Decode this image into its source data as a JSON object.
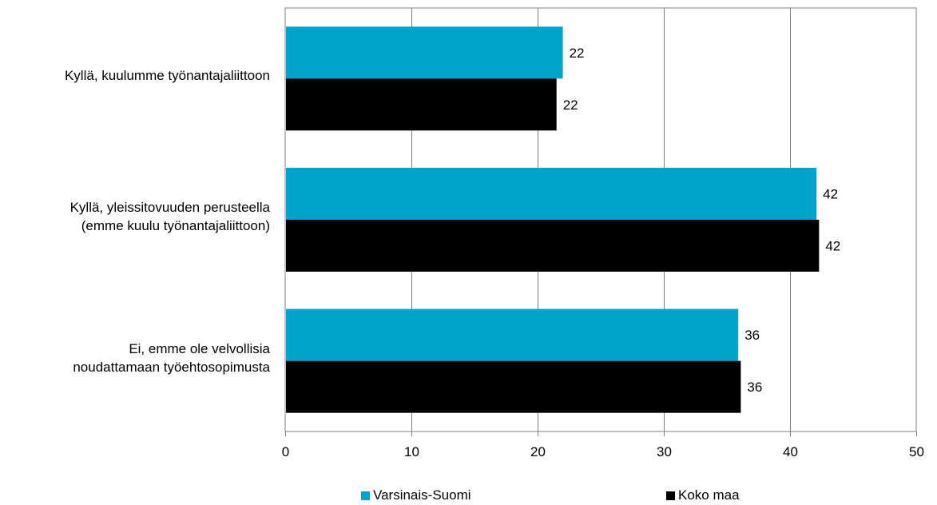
{
  "chart_data": {
    "type": "bar",
    "orientation": "horizontal",
    "categories": [
      [
        "Kyllä, kuulumme työnantajaliittoon"
      ],
      [
        "Kyllä, yleissitovuuden perusteella",
        "(emme kuulu työnantajaliittoon)"
      ],
      [
        "Ei, emme ole velvollisia",
        "noudattamaan työehtosopimusta"
      ]
    ],
    "series": [
      {
        "name": "Varsinais-Suomi",
        "color": "#00A3CC",
        "values": [
          22,
          42,
          36
        ],
        "exact": [
          22.0,
          42.1,
          35.9
        ]
      },
      {
        "name": "Koko maa",
        "color": "#000000",
        "values": [
          22,
          42,
          36
        ],
        "exact": [
          21.5,
          42.3,
          36.1
        ]
      }
    ],
    "xlim": [
      0,
      50
    ],
    "xticks": [
      "0",
      "10",
      "20",
      "30",
      "40",
      "50"
    ],
    "grid": true,
    "legend_position": "bottom"
  }
}
